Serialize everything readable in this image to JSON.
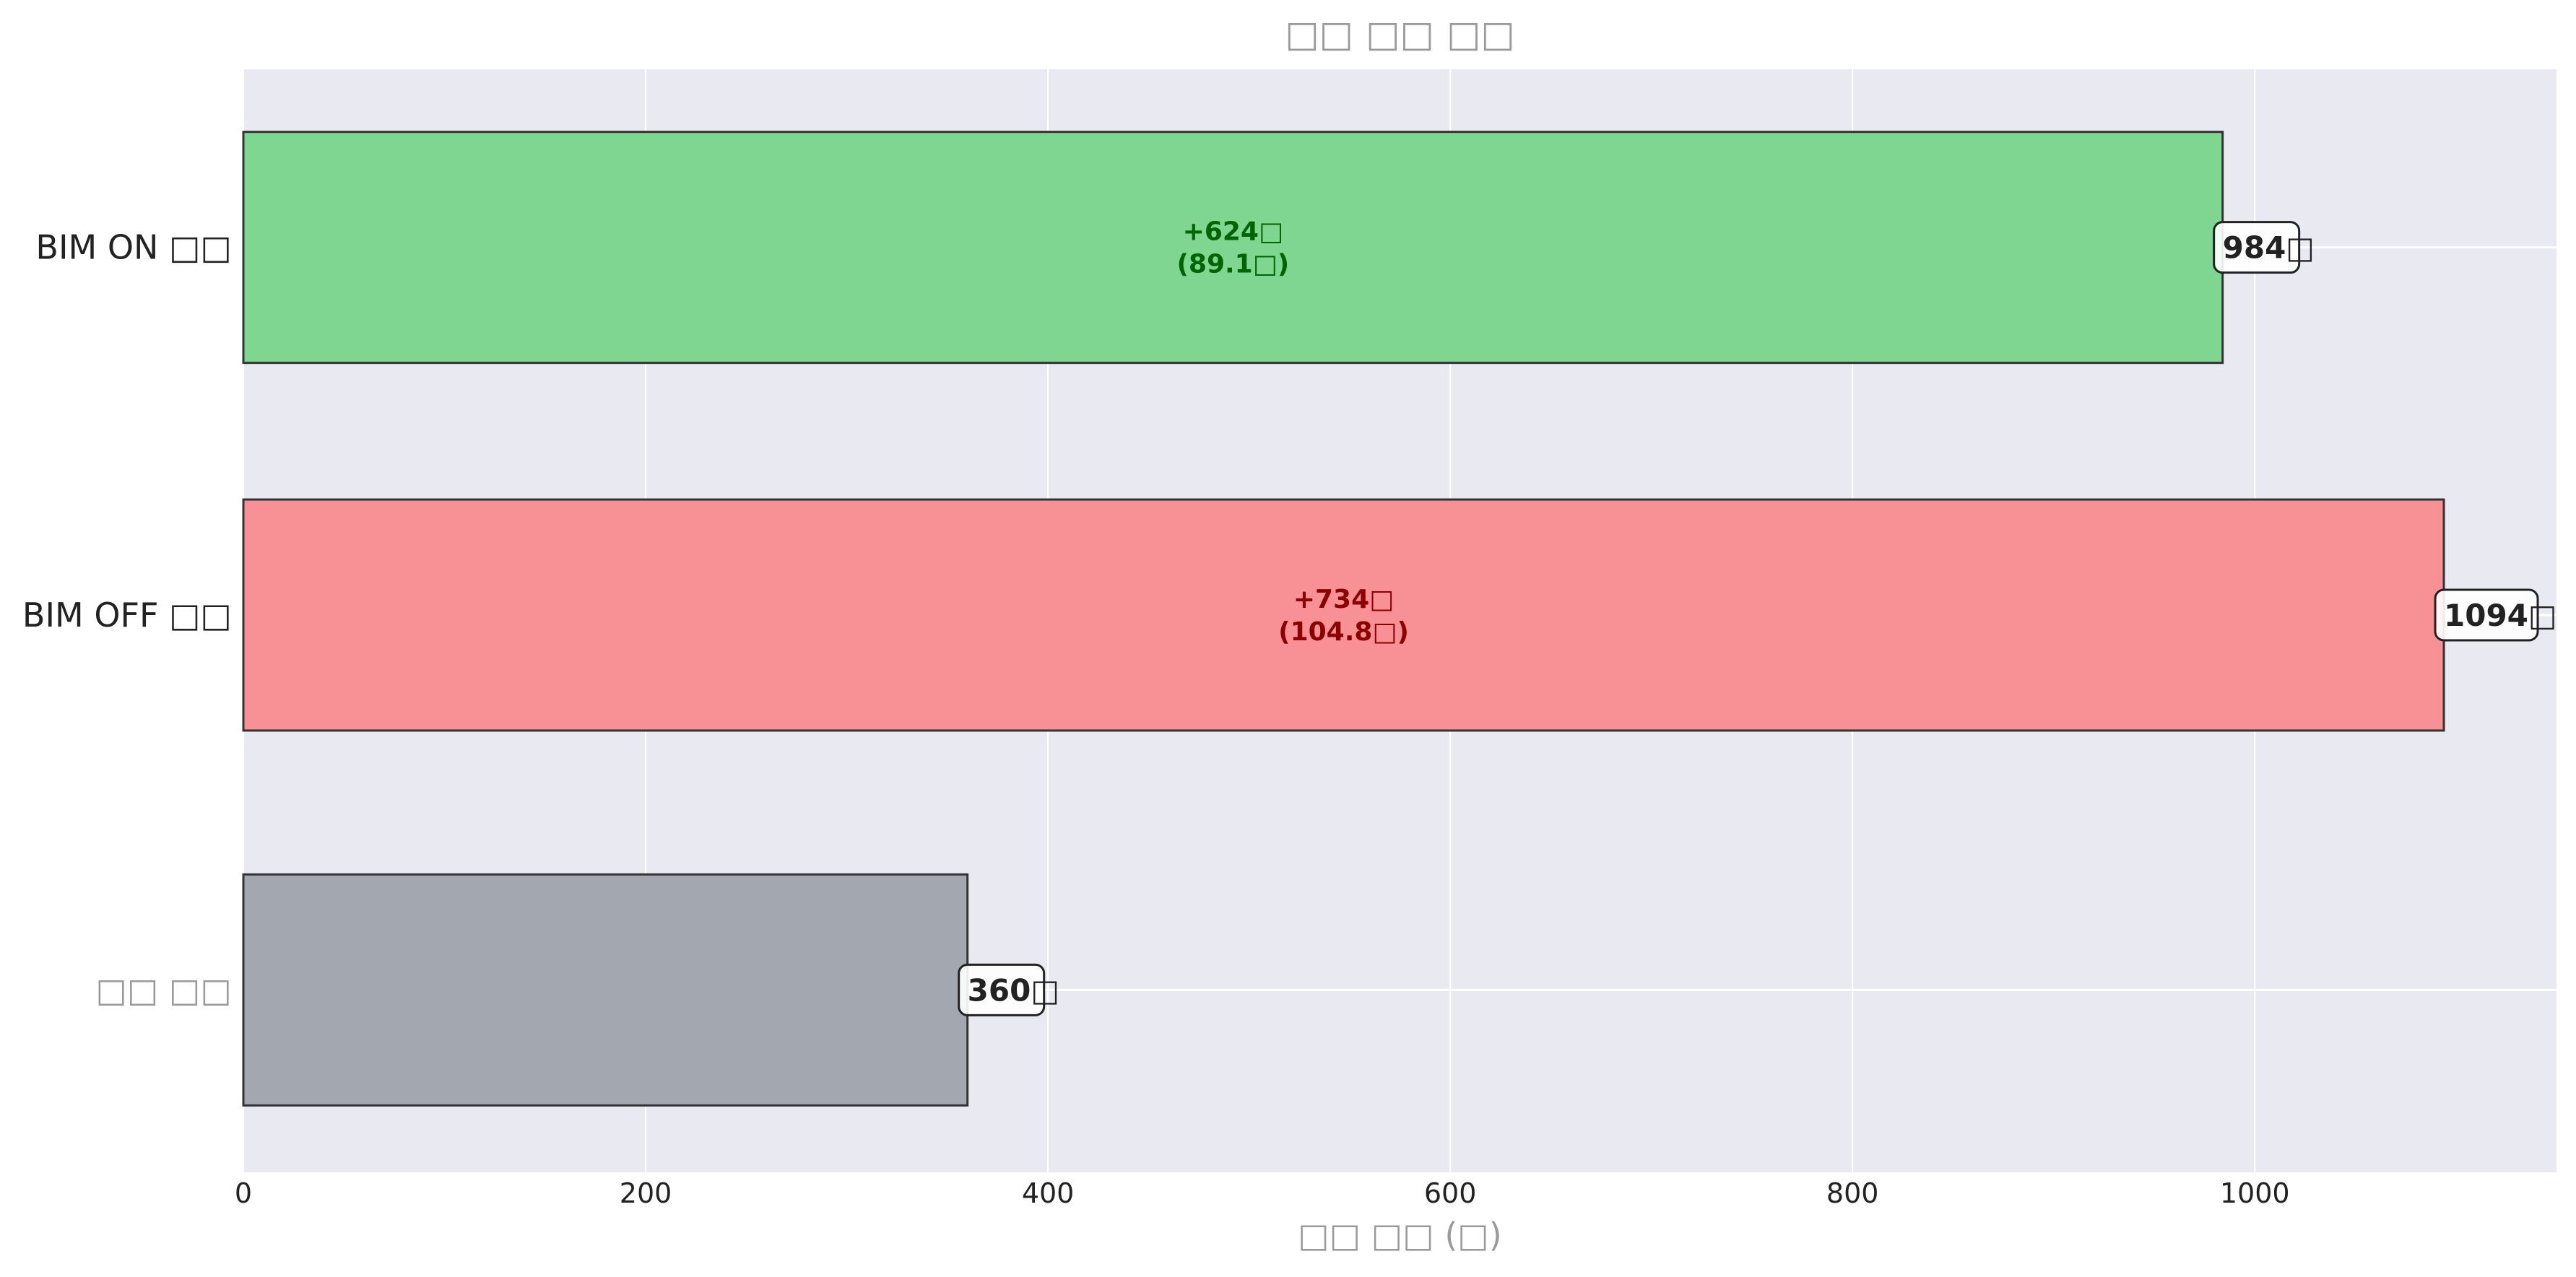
{
  "chart_data": {
    "type": "bar",
    "orientation": "horizontal",
    "title": "□□ □□ □□",
    "xlabel": "□□ □□ (□)",
    "ylabel": "",
    "xlim": [
      0,
      1150
    ],
    "xticks": [
      0,
      200,
      400,
      600,
      800,
      1000
    ],
    "grid": true,
    "categories": [
      "BIM ON □□",
      "BIM OFF □□",
      "□□ □□"
    ],
    "values": [
      984,
      1094,
      360
    ],
    "value_labels": [
      "984□",
      "1094□",
      "360□"
    ],
    "bar_colors": [
      "#7ed690",
      "#f79196",
      "#a3a8b0"
    ],
    "annotations": [
      {
        "category": "BIM ON □□",
        "line1": "+624□",
        "line2": "(89.1□)",
        "color": "#006400"
      },
      {
        "category": "BIM OFF □□",
        "line1": "+734□",
        "line2": "(104.8□)",
        "color": "#8b0000"
      }
    ],
    "plot_background": "#e9e9f1",
    "grid_color": "#ffffff",
    "bar_edge_color": "#333333"
  }
}
